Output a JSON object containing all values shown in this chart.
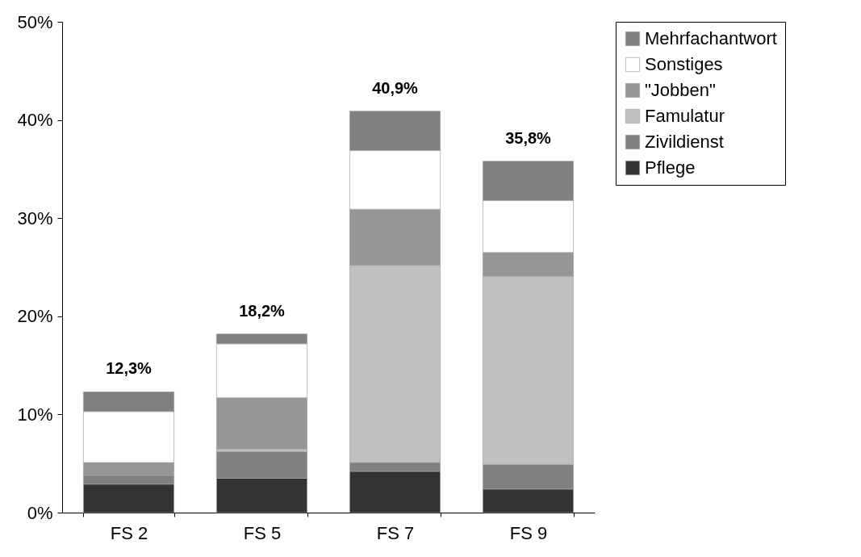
{
  "chart_data": {
    "type": "bar",
    "stacked": true,
    "categories": [
      "FS 2",
      "FS 5",
      "FS 7",
      "FS 9"
    ],
    "series": [
      {
        "name": "Pflege",
        "color": "#333333",
        "values": [
          2.9,
          3.5,
          4.2,
          2.4
        ]
      },
      {
        "name": "Zivildienst",
        "color": "#808080",
        "values": [
          0.9,
          2.7,
          0.9,
          2.5
        ]
      },
      {
        "name": "Famulatur",
        "color": "#c0c0c0",
        "values": [
          0,
          0.3,
          20.1,
          19.2
        ]
      },
      {
        "name": "\"Jobben\"",
        "color": "#969696",
        "values": [
          1.3,
          5.2,
          5.7,
          2.4
        ]
      },
      {
        "name": "Sonstiges",
        "color": "#ffffff",
        "values": [
          5.2,
          5.5,
          6.0,
          5.3
        ]
      },
      {
        "name": "Mehrfachantwort",
        "color": "#808080",
        "values": [
          2.0,
          1.0,
          4.0,
          4.0
        ]
      }
    ],
    "totals": [
      "12,3%",
      "18,2%",
      "40,9%",
      "35,8%"
    ],
    "ylim": [
      0,
      50
    ],
    "yticks": [
      {
        "value": 0,
        "label": "0%"
      },
      {
        "value": 10,
        "label": "10%"
      },
      {
        "value": 20,
        "label": "20%"
      },
      {
        "value": 30,
        "label": "30%"
      },
      {
        "value": 40,
        "label": "40%"
      },
      {
        "value": 50,
        "label": "50%"
      }
    ],
    "grid": false,
    "legend": "right"
  }
}
